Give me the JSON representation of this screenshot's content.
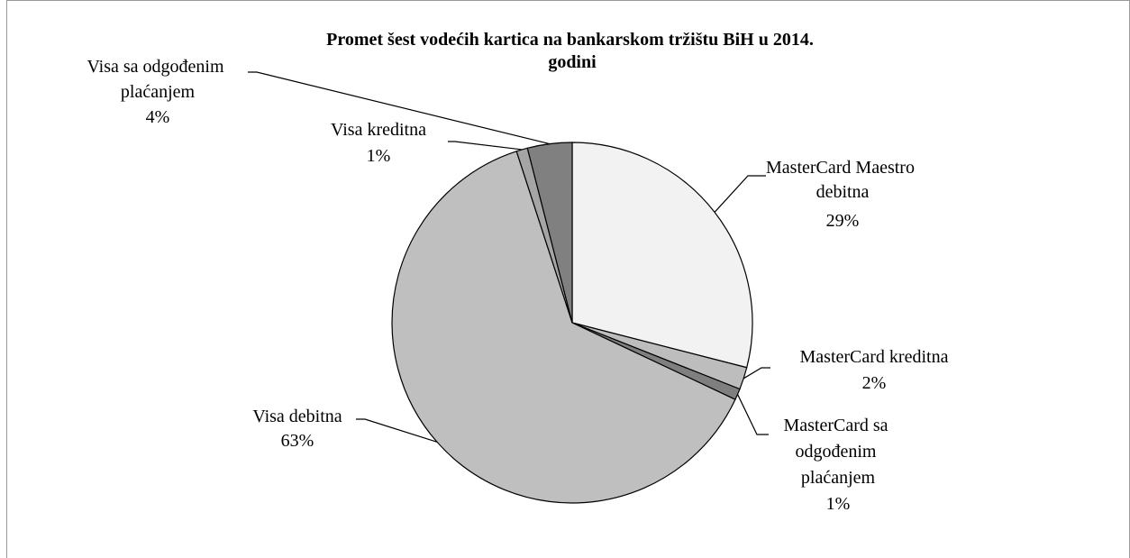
{
  "chart_data": {
    "type": "pie",
    "title": "Promet šest vodećih kartica na bankarskom tržištu BiH u 2014. godini",
    "categories": [
      "MasterCard Maestro debitna",
      "MasterCard kreditna",
      "MasterCard sa odgođenim plaćanjem",
      "Visa debitna",
      "Visa kreditna",
      "Visa sa odgođenim plaćanjem"
    ],
    "values": [
      29,
      2,
      1,
      63,
      1,
      4
    ],
    "value_labels": [
      "29%",
      "2%",
      "1%",
      "63%",
      "1%",
      "4%"
    ],
    "colors": [
      "#f2f2f2",
      "#bdbdbd",
      "#7f7f7f",
      "#bfbfbf",
      "#a5a5a5",
      "#808080"
    ]
  }
}
